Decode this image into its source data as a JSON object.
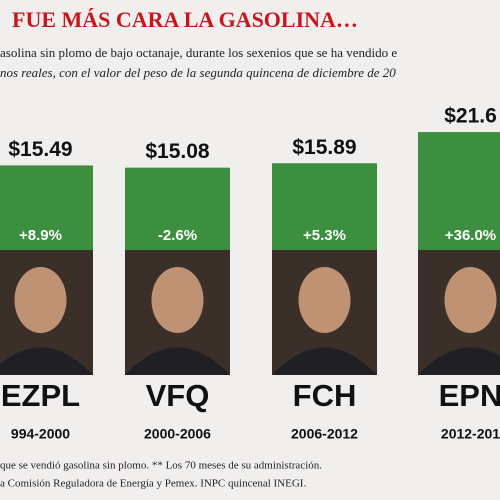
{
  "chart_data": {
    "type": "bar",
    "title": "FUE MÁS CARA LA GASOLINA…",
    "subtitle": [
      "asolina sin plomo de bajo octanaje, durante los sexenios que se ha vendido e",
      "nos reales, con el valor del peso de la segunda quincena de diciembre de 20"
    ],
    "categories": [
      "EZPL",
      "VFQ",
      "FCH",
      "EPN"
    ],
    "periods": [
      "994-2000",
      "2000-2006",
      "2006-2012",
      "2012-201"
    ],
    "values": [
      15.49,
      15.08,
      15.89,
      21.6
    ],
    "value_labels": [
      "$15.49",
      "$15.08",
      "$15.89",
      "$21.6"
    ],
    "changes": [
      "+8.9%",
      "-2.6%",
      "+5.3%",
      "+36.0%"
    ],
    "color": "#3c8f3e",
    "notes": [
      "que se vendió gasolina sin plomo. ** Los 70 meses de su administración.",
      "a Comisión Reguladora de Energía y Pemex. INPC quincenal INEGI."
    ]
  }
}
